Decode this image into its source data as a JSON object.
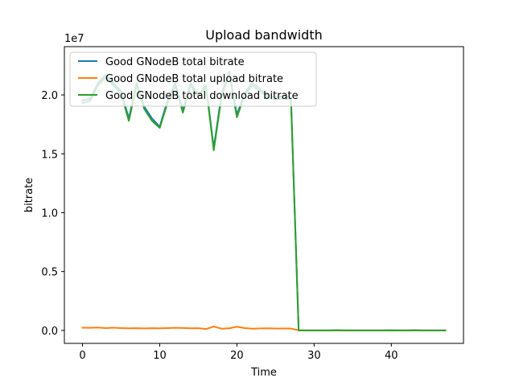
{
  "chart_data": {
    "type": "line",
    "title": "Upload bandwidth",
    "xlabel": "Time",
    "ylabel": "bitrate",
    "offset_text": "1e7",
    "xlim": [
      -2.35,
      49.35
    ],
    "ylim": [
      -1100000,
      24100000
    ],
    "xticks": [
      0,
      10,
      20,
      30,
      40
    ],
    "xtick_labels": [
      "0",
      "10",
      "20",
      "30",
      "40"
    ],
    "yticks": [
      0,
      5000000,
      10000000,
      15000000,
      20000000
    ],
    "ytick_labels": [
      "0.0",
      "0.5",
      "1.0",
      "1.5",
      "2.0"
    ],
    "legend_position": "top-left",
    "x": [
      0,
      1,
      2,
      3,
      4,
      5,
      6,
      7,
      8,
      9,
      10,
      11,
      12,
      13,
      14,
      15,
      16,
      17,
      18,
      19,
      20,
      21,
      22,
      23,
      24,
      25,
      26,
      27,
      28,
      29,
      30,
      31,
      32,
      33,
      34,
      35,
      36,
      37,
      38,
      39,
      40,
      41,
      42,
      43,
      44,
      45,
      46,
      47
    ],
    "series": [
      {
        "name": "Good GNodeB total bitrate",
        "color": "#1f77b4",
        "values": [
          19500000,
          19700000,
          21000000,
          21700000,
          21000000,
          20300000,
          18000000,
          21000000,
          19000000,
          18000000,
          17300000,
          19500000,
          21000000,
          18700000,
          21000000,
          20000000,
          20800000,
          15500000,
          20000000,
          22000000,
          18300000,
          20200000,
          21000000,
          20500000,
          20000000,
          19800000,
          19900000,
          19800000,
          0,
          0,
          0,
          0,
          0,
          20000,
          0,
          0,
          0,
          0,
          0,
          0,
          10000,
          0,
          0,
          20000,
          0,
          0,
          0,
          0
        ]
      },
      {
        "name": "Good GNodeB total upload bitrate",
        "color": "#ff7f0e",
        "values": [
          230000,
          220000,
          250000,
          200000,
          230000,
          200000,
          180000,
          190000,
          170000,
          190000,
          180000,
          200000,
          220000,
          210000,
          180000,
          190000,
          120000,
          330000,
          150000,
          180000,
          320000,
          200000,
          150000,
          170000,
          180000,
          160000,
          160000,
          160000,
          10000,
          0,
          0,
          0,
          0,
          0,
          0,
          0,
          0,
          0,
          0,
          0,
          0,
          0,
          0,
          0,
          0,
          0,
          0,
          0
        ]
      },
      {
        "name": "Good GNodeB total download bitrate",
        "color": "#2ca02c",
        "values": [
          19300000,
          19500000,
          20800000,
          21500000,
          20800000,
          20100000,
          17800000,
          20800000,
          18800000,
          17800000,
          17200000,
          19300000,
          20800000,
          18500000,
          20800000,
          19800000,
          20700000,
          15300000,
          19800000,
          21800000,
          18100000,
          20000000,
          20800000,
          20300000,
          19800000,
          19600000,
          19700000,
          19600000,
          0,
          0,
          0,
          0,
          0,
          20000,
          0,
          0,
          0,
          0,
          0,
          0,
          10000,
          0,
          0,
          20000,
          0,
          0,
          0,
          0
        ]
      }
    ]
  }
}
